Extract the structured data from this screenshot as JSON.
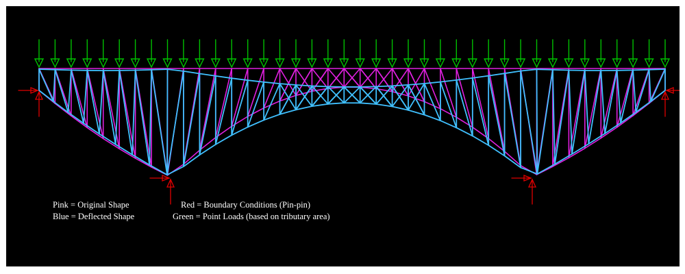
{
  "legend": {
    "pink": "Pink = Original Shape",
    "blue": "Blue = Deflected Shape",
    "red": "Red = Boundary Conditions (Pin-pin)",
    "green": "Green = Point Loads (based on tributary area)"
  },
  "colors": {
    "background": "#000000",
    "original_shape": "#e020e0",
    "deflected_shape": "#40c0ff",
    "boundary_conditions": "#e00000",
    "point_loads": "#00c000"
  },
  "icons": {
    "load": "down-arrow-icon",
    "support": "pin-support-icon"
  }
}
